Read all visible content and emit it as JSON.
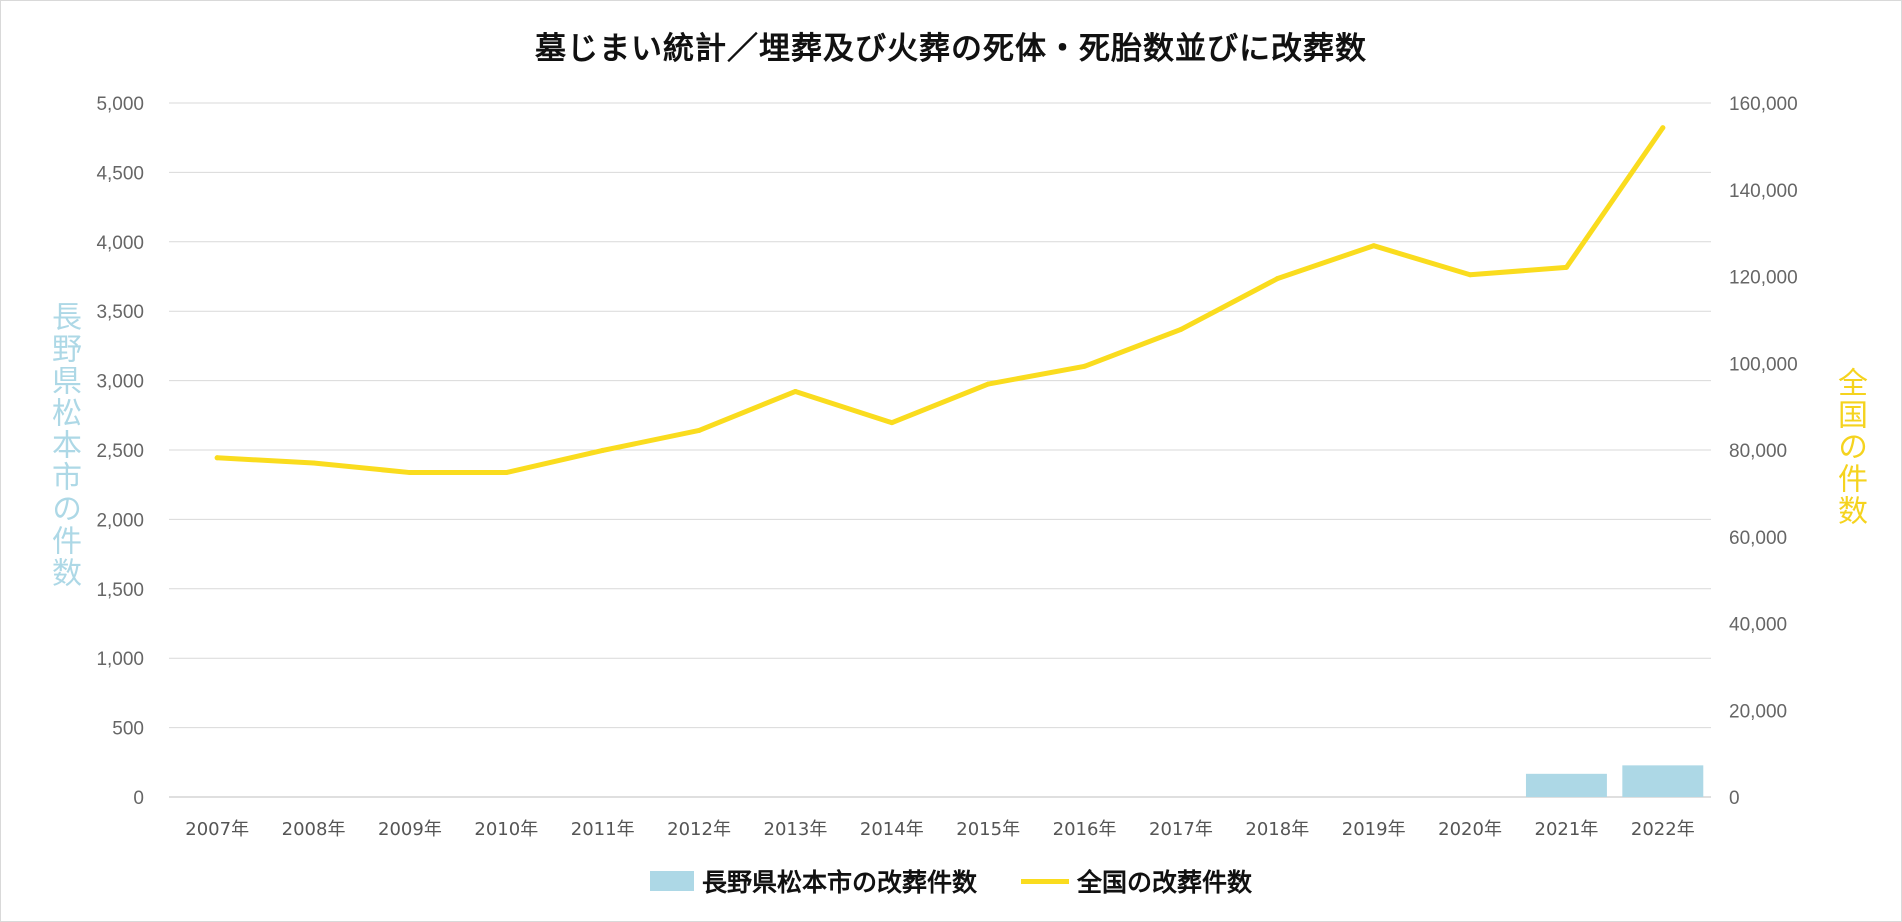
{
  "chart_data": {
    "type": "bar+line",
    "title": "墓じまい統計／埋葬及び火葬の死体・死胎数並びに改葬数",
    "categories": [
      "2007年",
      "2008年",
      "2009年",
      "2010年",
      "2011年",
      "2012年",
      "2013年",
      "2014年",
      "2015年",
      "2016年",
      "2017年",
      "2018年",
      "2019年",
      "2020年",
      "2021年",
      "2022年"
    ],
    "series": [
      {
        "name": "長野県松本市の改葬件数",
        "type": "bar",
        "axis": "left",
        "color": "#add8e6",
        "values": [
          null,
          null,
          null,
          null,
          null,
          null,
          null,
          null,
          null,
          null,
          null,
          null,
          null,
          null,
          167,
          228
        ]
      },
      {
        "name": "全国の改葬件数",
        "type": "line",
        "axis": "right",
        "color": "#fadc1e",
        "values": [
          78200,
          77000,
          74800,
          74800,
          79900,
          84500,
          93500,
          86300,
          95200,
          99300,
          107800,
          119500,
          127100,
          120400,
          122100,
          154300
        ]
      }
    ],
    "ylabel_left": "長野県松本市の件数",
    "ylabel_right": "全国の件数",
    "ylim_left": [
      0,
      5000
    ],
    "ylim_right": [
      0,
      160000
    ],
    "yticks_left": [
      "0",
      "500",
      "1,000",
      "1,500",
      "2,000",
      "2,500",
      "3,000",
      "3,500",
      "4,000",
      "4,500",
      "5,000"
    ],
    "yticks_right": [
      "0",
      "20,000",
      "40,000",
      "60,000",
      "80,000",
      "100,000",
      "120,000",
      "140,000",
      "160,000"
    ],
    "grid": true,
    "legend_position": "bottom",
    "left_label_color": "#add8e6",
    "right_label_color": "#f5d31e"
  }
}
